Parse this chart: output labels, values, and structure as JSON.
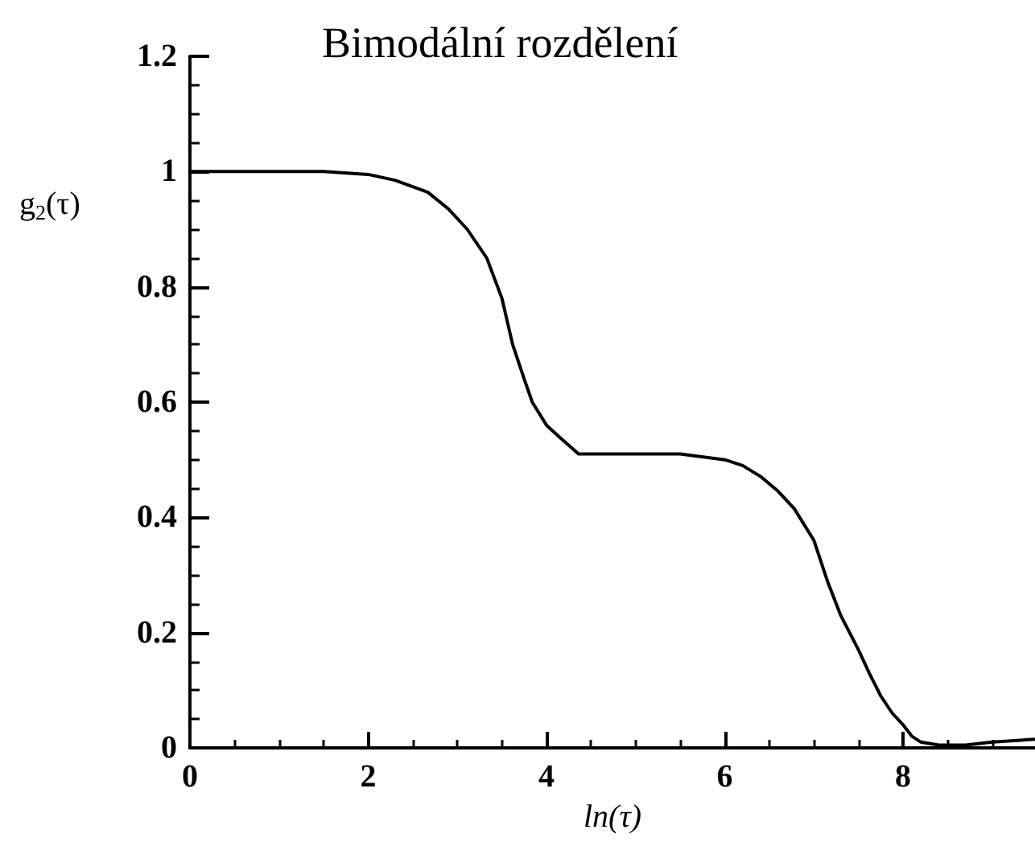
{
  "chart_data": {
    "type": "line",
    "title": "Bimodální rozdělení",
    "xlabel": "ln(τ)",
    "ylabel": "g$_{2}$(τ)",
    "x": [
      0,
      0.5,
      1,
      1.5,
      2,
      2.3,
      2.67,
      2.9,
      3.11,
      3.33,
      3.5,
      3.62,
      3.75,
      3.84,
      4,
      4.14,
      4.36,
      4.6,
      5,
      5.5,
      6,
      6.2,
      6.41,
      6.6,
      6.78,
      7,
      7.15,
      7.3,
      7.5,
      7.62,
      7.75,
      7.88,
      8,
      8.1,
      8.2,
      8.4,
      8.7,
      9,
      9.48
    ],
    "values": [
      1.0,
      1.0,
      1.0,
      1.0,
      0.995,
      0.985,
      0.964,
      0.935,
      0.9,
      0.85,
      0.78,
      0.7,
      0.64,
      0.6,
      0.56,
      0.54,
      0.51,
      0.51,
      0.51,
      0.51,
      0.5,
      0.49,
      0.47,
      0.445,
      0.415,
      0.36,
      0.29,
      0.23,
      0.17,
      0.13,
      0.09,
      0.06,
      0.04,
      0.02,
      0.01,
      0.005,
      0.005,
      0.01,
      0.015
    ],
    "color": "#000000",
    "xlim": [
      0,
      9.48
    ],
    "xticks": [
      0,
      2,
      4,
      6,
      8
    ],
    "ylim": [
      0,
      1.2
    ],
    "yticks": [
      0,
      0.2,
      0.4,
      0.6,
      0.8,
      1,
      {
        "value": 1.2,
        "label": "1.2"
      }
    ]
  }
}
